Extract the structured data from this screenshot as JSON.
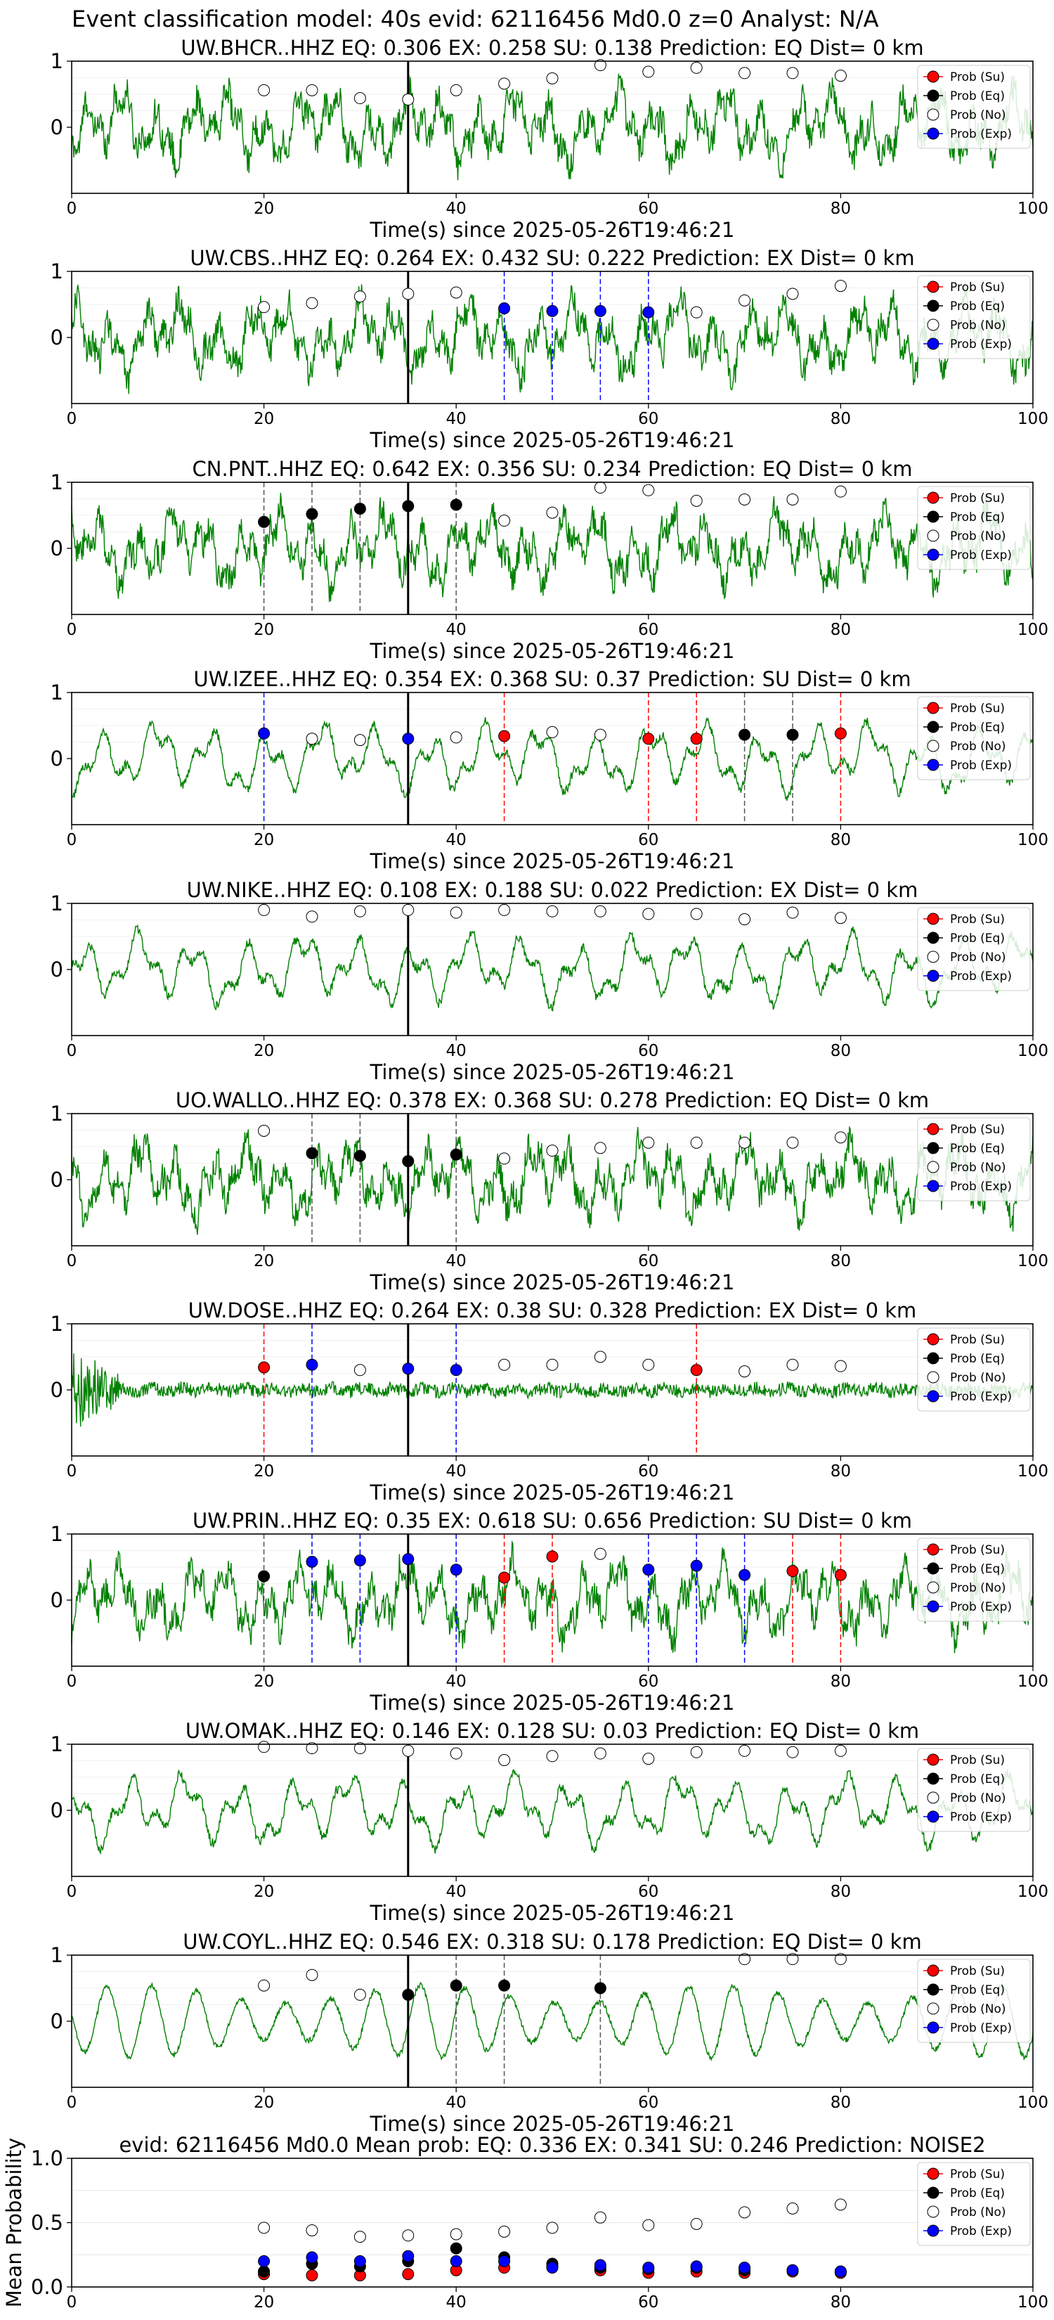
{
  "suptitle": "Event classification model: 40s evid: 62116456 Md0.0 z=0 Analyst: N/A",
  "colors": {
    "trace": "#008000",
    "eq_marker": "#000000",
    "su_marker": "#ff0000",
    "exp_marker": "#0000ff",
    "no_marker_face": "#ffffff",
    "arrival_line": "#000000",
    "eq_line": "#555555",
    "su_line": "#ff0000",
    "exp_line": "#0000ff"
  },
  "legend": {
    "su": "Prob (Su)",
    "eq": "Prob (Eq)",
    "no": "Prob (No)",
    "exp": "Prob (Exp)"
  },
  "chart_data": [
    {
      "type": "line",
      "title": "UW.BHCR..HHZ   EQ: 0.306  EX: 0.258  SU: 0.138   Prediction: EQ    Dist= 0 km",
      "xlabel": "Time(s) since 2025-05-26T19:46:21",
      "xlim": [
        0,
        100
      ],
      "ylim": [
        -1,
        1
      ],
      "xticks": [
        0,
        20,
        40,
        60,
        80,
        100
      ],
      "yticks": [
        1,
        0
      ],
      "arrival_time": 35,
      "trace_style": "noisy",
      "legend_position": "upper-right",
      "points": [
        {
          "x": 20,
          "y": 0.56,
          "cls": "no"
        },
        {
          "x": 25,
          "y": 0.56,
          "cls": "no"
        },
        {
          "x": 30,
          "y": 0.44,
          "cls": "no"
        },
        {
          "x": 35,
          "y": 0.42,
          "cls": "no"
        },
        {
          "x": 40,
          "y": 0.56,
          "cls": "no"
        },
        {
          "x": 45,
          "y": 0.66,
          "cls": "no"
        },
        {
          "x": 50,
          "y": 0.74,
          "cls": "no"
        },
        {
          "x": 55,
          "y": 0.94,
          "cls": "no"
        },
        {
          "x": 60,
          "y": 0.84,
          "cls": "no"
        },
        {
          "x": 65,
          "y": 0.9,
          "cls": "no"
        },
        {
          "x": 70,
          "y": 0.82,
          "cls": "no"
        },
        {
          "x": 75,
          "y": 0.82,
          "cls": "no"
        },
        {
          "x": 80,
          "y": 0.78,
          "cls": "no"
        }
      ]
    },
    {
      "type": "line",
      "title": "UW.CBS..HHZ   EQ: 0.264  EX: 0.432  SU: 0.222   Prediction: EX    Dist= 0 km",
      "xlabel": "Time(s) since 2025-05-26T19:46:21",
      "xlim": [
        0,
        100
      ],
      "ylim": [
        -1,
        1
      ],
      "xticks": [
        0,
        20,
        40,
        60,
        80,
        100
      ],
      "yticks": [
        1,
        0
      ],
      "arrival_time": 35,
      "trace_style": "noisy",
      "legend_position": "upper-right",
      "points": [
        {
          "x": 20,
          "y": 0.46,
          "cls": "no"
        },
        {
          "x": 25,
          "y": 0.52,
          "cls": "no"
        },
        {
          "x": 30,
          "y": 0.62,
          "cls": "no"
        },
        {
          "x": 35,
          "y": 0.66,
          "cls": "no"
        },
        {
          "x": 40,
          "y": 0.68,
          "cls": "no"
        },
        {
          "x": 45,
          "y": 0.44,
          "cls": "exp"
        },
        {
          "x": 50,
          "y": 0.4,
          "cls": "exp"
        },
        {
          "x": 55,
          "y": 0.4,
          "cls": "exp"
        },
        {
          "x": 60,
          "y": 0.38,
          "cls": "exp"
        },
        {
          "x": 65,
          "y": 0.38,
          "cls": "no"
        },
        {
          "x": 70,
          "y": 0.56,
          "cls": "no"
        },
        {
          "x": 75,
          "y": 0.66,
          "cls": "no"
        },
        {
          "x": 80,
          "y": 0.78,
          "cls": "no"
        }
      ]
    },
    {
      "type": "line",
      "title": "CN.PNT..HHZ   EQ: 0.642  EX: 0.356  SU: 0.234   Prediction: EQ    Dist= 0 km",
      "xlabel": "Time(s) since 2025-05-26T19:46:21",
      "xlim": [
        0,
        100
      ],
      "ylim": [
        -1,
        1
      ],
      "xticks": [
        0,
        20,
        40,
        60,
        80,
        100
      ],
      "yticks": [
        1,
        0
      ],
      "arrival_time": 35,
      "trace_style": "noisy",
      "legend_position": "upper-right",
      "points": [
        {
          "x": 20,
          "y": 0.4,
          "cls": "eq"
        },
        {
          "x": 25,
          "y": 0.52,
          "cls": "eq"
        },
        {
          "x": 30,
          "y": 0.6,
          "cls": "eq"
        },
        {
          "x": 35,
          "y": 0.64,
          "cls": "eq"
        },
        {
          "x": 40,
          "y": 0.66,
          "cls": "eq"
        },
        {
          "x": 45,
          "y": 0.42,
          "cls": "no"
        },
        {
          "x": 50,
          "y": 0.54,
          "cls": "no"
        },
        {
          "x": 55,
          "y": 0.92,
          "cls": "no"
        },
        {
          "x": 60,
          "y": 0.88,
          "cls": "no"
        },
        {
          "x": 65,
          "y": 0.72,
          "cls": "no"
        },
        {
          "x": 70,
          "y": 0.74,
          "cls": "no"
        },
        {
          "x": 75,
          "y": 0.74,
          "cls": "no"
        },
        {
          "x": 80,
          "y": 0.86,
          "cls": "no"
        }
      ]
    },
    {
      "type": "line",
      "title": "UW.IZEE..HHZ   EQ: 0.354  EX: 0.368  SU: 0.37   Prediction: SU    Dist= 0 km",
      "xlabel": "Time(s) since 2025-05-26T19:46:21",
      "xlim": [
        0,
        100
      ],
      "ylim": [
        -1,
        1
      ],
      "xticks": [
        0,
        20,
        40,
        60,
        80,
        100
      ],
      "yticks": [
        1,
        0
      ],
      "arrival_time": 35,
      "trace_style": "wavy",
      "legend_position": "upper-right",
      "points": [
        {
          "x": 20,
          "y": 0.38,
          "cls": "exp"
        },
        {
          "x": 25,
          "y": 0.3,
          "cls": "no"
        },
        {
          "x": 30,
          "y": 0.28,
          "cls": "no"
        },
        {
          "x": 35,
          "y": 0.3,
          "cls": "exp"
        },
        {
          "x": 40,
          "y": 0.32,
          "cls": "no"
        },
        {
          "x": 45,
          "y": 0.34,
          "cls": "su"
        },
        {
          "x": 50,
          "y": 0.4,
          "cls": "no"
        },
        {
          "x": 55,
          "y": 0.36,
          "cls": "no"
        },
        {
          "x": 60,
          "y": 0.3,
          "cls": "su"
        },
        {
          "x": 65,
          "y": 0.3,
          "cls": "su"
        },
        {
          "x": 70,
          "y": 0.36,
          "cls": "eq"
        },
        {
          "x": 75,
          "y": 0.36,
          "cls": "eq"
        },
        {
          "x": 80,
          "y": 0.38,
          "cls": "su"
        }
      ]
    },
    {
      "type": "line",
      "title": "UW.NIKE..HHZ   EQ: 0.108  EX: 0.188  SU: 0.022   Prediction: EX    Dist= 0 km",
      "xlabel": "Time(s) since 2025-05-26T19:46:21",
      "xlim": [
        0,
        100
      ],
      "ylim": [
        -1,
        1
      ],
      "xticks": [
        0,
        20,
        40,
        60,
        80,
        100
      ],
      "yticks": [
        1,
        0
      ],
      "arrival_time": 35,
      "trace_style": "wavy",
      "legend_position": "upper-right",
      "points": [
        {
          "x": 20,
          "y": 0.9,
          "cls": "no"
        },
        {
          "x": 25,
          "y": 0.8,
          "cls": "no"
        },
        {
          "x": 30,
          "y": 0.88,
          "cls": "no"
        },
        {
          "x": 35,
          "y": 0.9,
          "cls": "no"
        },
        {
          "x": 40,
          "y": 0.86,
          "cls": "no"
        },
        {
          "x": 45,
          "y": 0.9,
          "cls": "no"
        },
        {
          "x": 50,
          "y": 0.88,
          "cls": "no"
        },
        {
          "x": 55,
          "y": 0.88,
          "cls": "no"
        },
        {
          "x": 60,
          "y": 0.84,
          "cls": "no"
        },
        {
          "x": 65,
          "y": 0.84,
          "cls": "no"
        },
        {
          "x": 70,
          "y": 0.76,
          "cls": "no"
        },
        {
          "x": 75,
          "y": 0.86,
          "cls": "no"
        },
        {
          "x": 80,
          "y": 0.78,
          "cls": "no"
        }
      ]
    },
    {
      "type": "line",
      "title": "UO.WALLO..HHZ   EQ: 0.378  EX: 0.368  SU: 0.278   Prediction: EQ    Dist= 0 km",
      "xlabel": "Time(s) since 2025-05-26T19:46:21",
      "xlim": [
        0,
        100
      ],
      "ylim": [
        -1,
        1
      ],
      "xticks": [
        0,
        20,
        40,
        60,
        80,
        100
      ],
      "yticks": [
        1,
        0
      ],
      "arrival_time": 35,
      "trace_style": "noisy",
      "legend_position": "upper-right",
      "points": [
        {
          "x": 20,
          "y": 0.74,
          "cls": "no"
        },
        {
          "x": 25,
          "y": 0.4,
          "cls": "eq"
        },
        {
          "x": 30,
          "y": 0.36,
          "cls": "eq"
        },
        {
          "x": 35,
          "y": 0.28,
          "cls": "eq"
        },
        {
          "x": 40,
          "y": 0.38,
          "cls": "eq"
        },
        {
          "x": 45,
          "y": 0.32,
          "cls": "no"
        },
        {
          "x": 50,
          "y": 0.44,
          "cls": "no"
        },
        {
          "x": 55,
          "y": 0.48,
          "cls": "no"
        },
        {
          "x": 60,
          "y": 0.56,
          "cls": "no"
        },
        {
          "x": 65,
          "y": 0.56,
          "cls": "no"
        },
        {
          "x": 70,
          "y": 0.56,
          "cls": "no"
        },
        {
          "x": 75,
          "y": 0.56,
          "cls": "no"
        },
        {
          "x": 80,
          "y": 0.64,
          "cls": "no"
        }
      ]
    },
    {
      "type": "line",
      "title": "UW.DOSE..HHZ   EQ: 0.264  EX: 0.38  SU: 0.328   Prediction: EX    Dist= 0 km",
      "xlabel": "Time(s) since 2025-05-26T19:46:21",
      "xlim": [
        0,
        100
      ],
      "ylim": [
        -1,
        1
      ],
      "xticks": [
        0,
        20,
        40,
        60,
        80,
        100
      ],
      "yticks": [
        1,
        0
      ],
      "arrival_time": 35,
      "trace_style": "flat",
      "legend_position": "upper-right",
      "points": [
        {
          "x": 20,
          "y": 0.34,
          "cls": "su"
        },
        {
          "x": 25,
          "y": 0.38,
          "cls": "exp"
        },
        {
          "x": 30,
          "y": 0.3,
          "cls": "no"
        },
        {
          "x": 35,
          "y": 0.32,
          "cls": "exp"
        },
        {
          "x": 40,
          "y": 0.3,
          "cls": "exp"
        },
        {
          "x": 45,
          "y": 0.38,
          "cls": "no"
        },
        {
          "x": 50,
          "y": 0.38,
          "cls": "no"
        },
        {
          "x": 55,
          "y": 0.5,
          "cls": "no"
        },
        {
          "x": 60,
          "y": 0.38,
          "cls": "no"
        },
        {
          "x": 65,
          "y": 0.3,
          "cls": "su"
        },
        {
          "x": 70,
          "y": 0.28,
          "cls": "no"
        },
        {
          "x": 75,
          "y": 0.38,
          "cls": "no"
        },
        {
          "x": 80,
          "y": 0.36,
          "cls": "no"
        }
      ]
    },
    {
      "type": "line",
      "title": "UW.PRIN..HHZ   EQ: 0.35  EX: 0.618  SU: 0.656   Prediction: SU    Dist= 0 km",
      "xlabel": "Time(s) since 2025-05-26T19:46:21",
      "xlim": [
        0,
        100
      ],
      "ylim": [
        -1,
        1
      ],
      "xticks": [
        0,
        20,
        40,
        60,
        80,
        100
      ],
      "yticks": [
        1,
        0
      ],
      "arrival_time": 35,
      "trace_style": "noisy",
      "legend_position": "upper-right",
      "points": [
        {
          "x": 20,
          "y": 0.36,
          "cls": "eq"
        },
        {
          "x": 25,
          "y": 0.58,
          "cls": "exp"
        },
        {
          "x": 30,
          "y": 0.6,
          "cls": "exp"
        },
        {
          "x": 35,
          "y": 0.62,
          "cls": "exp"
        },
        {
          "x": 40,
          "y": 0.46,
          "cls": "exp"
        },
        {
          "x": 45,
          "y": 0.34,
          "cls": "su"
        },
        {
          "x": 50,
          "y": 0.66,
          "cls": "su"
        },
        {
          "x": 55,
          "y": 0.7,
          "cls": "no"
        },
        {
          "x": 60,
          "y": 0.46,
          "cls": "exp"
        },
        {
          "x": 65,
          "y": 0.52,
          "cls": "exp"
        },
        {
          "x": 70,
          "y": 0.38,
          "cls": "exp"
        },
        {
          "x": 75,
          "y": 0.44,
          "cls": "su"
        },
        {
          "x": 80,
          "y": 0.38,
          "cls": "su"
        }
      ]
    },
    {
      "type": "line",
      "title": "UW.OMAK..HHZ   EQ: 0.146  EX: 0.128  SU: 0.03   Prediction: EQ    Dist= 0 km",
      "xlabel": "Time(s) since 2025-05-26T19:46:21",
      "xlim": [
        0,
        100
      ],
      "ylim": [
        -1,
        1
      ],
      "xticks": [
        0,
        20,
        40,
        60,
        80,
        100
      ],
      "yticks": [
        1,
        0
      ],
      "arrival_time": 35,
      "trace_style": "wavy",
      "legend_position": "upper-right",
      "points": [
        {
          "x": 20,
          "y": 0.96,
          "cls": "no"
        },
        {
          "x": 25,
          "y": 0.94,
          "cls": "no"
        },
        {
          "x": 30,
          "y": 0.94,
          "cls": "no"
        },
        {
          "x": 35,
          "y": 0.9,
          "cls": "no"
        },
        {
          "x": 40,
          "y": 0.86,
          "cls": "no"
        },
        {
          "x": 45,
          "y": 0.76,
          "cls": "no"
        },
        {
          "x": 50,
          "y": 0.82,
          "cls": "no"
        },
        {
          "x": 55,
          "y": 0.86,
          "cls": "no"
        },
        {
          "x": 60,
          "y": 0.78,
          "cls": "no"
        },
        {
          "x": 65,
          "y": 0.88,
          "cls": "no"
        },
        {
          "x": 70,
          "y": 0.9,
          "cls": "no"
        },
        {
          "x": 75,
          "y": 0.88,
          "cls": "no"
        },
        {
          "x": 80,
          "y": 0.9,
          "cls": "no"
        }
      ]
    },
    {
      "type": "line",
      "title": "UW.COYL..HHZ   EQ: 0.546  EX: 0.318  SU: 0.178   Prediction: EQ    Dist= 0 km",
      "xlabel": "Time(s) since 2025-05-26T19:46:21",
      "xlim": [
        0,
        100
      ],
      "ylim": [
        -1,
        1
      ],
      "xticks": [
        0,
        20,
        40,
        60,
        80,
        100
      ],
      "yticks": [
        1,
        0
      ],
      "arrival_time": 35,
      "trace_style": "smooth",
      "legend_position": "upper-right",
      "points": [
        {
          "x": 20,
          "y": 0.54,
          "cls": "no"
        },
        {
          "x": 25,
          "y": 0.7,
          "cls": "no"
        },
        {
          "x": 30,
          "y": 0.4,
          "cls": "no"
        },
        {
          "x": 35,
          "y": 0.4,
          "cls": "eq"
        },
        {
          "x": 40,
          "y": 0.54,
          "cls": "eq"
        },
        {
          "x": 45,
          "y": 0.54,
          "cls": "eq"
        },
        {
          "x": 55,
          "y": 0.5,
          "cls": "eq"
        },
        {
          "x": 70,
          "y": 0.94,
          "cls": "no"
        },
        {
          "x": 75,
          "y": 0.94,
          "cls": "no"
        },
        {
          "x": 80,
          "y": 0.94,
          "cls": "no"
        }
      ]
    },
    {
      "type": "scatter",
      "title": "evid: 62116456  Md0.0   Mean prob:   EQ: 0.336  EX: 0.341  SU: 0.246   Prediction: NOISE2",
      "xlabel": "",
      "ylabel": "Mean Probability",
      "xlim": [
        0,
        100
      ],
      "ylim": [
        0,
        1
      ],
      "xticks": [
        0,
        20,
        40,
        60,
        80,
        100
      ],
      "yticks": [
        0,
        0.5,
        1
      ],
      "ytick_labels": [
        "0.0",
        "0.5",
        "1.0"
      ],
      "grid": true,
      "legend_position": "upper-right",
      "x": [
        20,
        25,
        30,
        35,
        40,
        45,
        50,
        55,
        60,
        65,
        70,
        75,
        80
      ],
      "series": [
        {
          "name": "Prob (Su)",
          "cls": "su",
          "values": [
            0.1,
            0.09,
            0.09,
            0.1,
            0.13,
            0.15,
            0.16,
            0.13,
            0.11,
            0.12,
            0.11,
            0.12,
            0.11
          ]
        },
        {
          "name": "Prob (Eq)",
          "cls": "eq",
          "values": [
            0.12,
            0.18,
            0.16,
            0.2,
            0.3,
            0.23,
            0.18,
            0.15,
            0.14,
            0.15,
            0.13,
            0.13,
            0.12
          ]
        },
        {
          "name": "Prob (No)",
          "cls": "no",
          "values": [
            0.46,
            0.44,
            0.39,
            0.4,
            0.41,
            0.43,
            0.46,
            0.54,
            0.48,
            0.49,
            0.58,
            0.61,
            0.64
          ]
        },
        {
          "name": "Prob (Exp)",
          "cls": "exp",
          "values": [
            0.2,
            0.23,
            0.2,
            0.24,
            0.2,
            0.2,
            0.15,
            0.17,
            0.15,
            0.16,
            0.15,
            0.13,
            0.12
          ]
        }
      ]
    }
  ]
}
